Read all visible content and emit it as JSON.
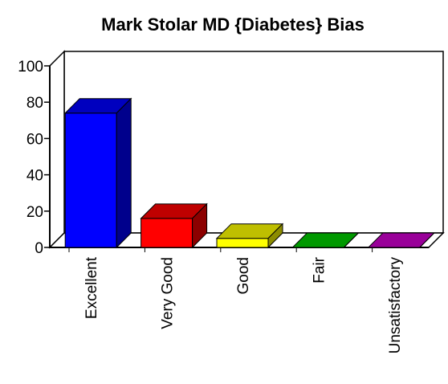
{
  "chart_data": {
    "type": "bar3d",
    "title": "Mark Stolar MD {Diabetes} Bias",
    "categories": [
      "Excellent",
      "Very Good",
      "Good",
      "Fair",
      "Unsatisfactory"
    ],
    "values": [
      74,
      16,
      5,
      0,
      0
    ],
    "colors": [
      "#0000ff",
      "#ff0000",
      "#ffff00",
      "#00cc00",
      "#cc00cc"
    ],
    "ylim": [
      0,
      100
    ],
    "yticks": [
      0,
      20,
      40,
      60,
      80,
      100
    ]
  }
}
